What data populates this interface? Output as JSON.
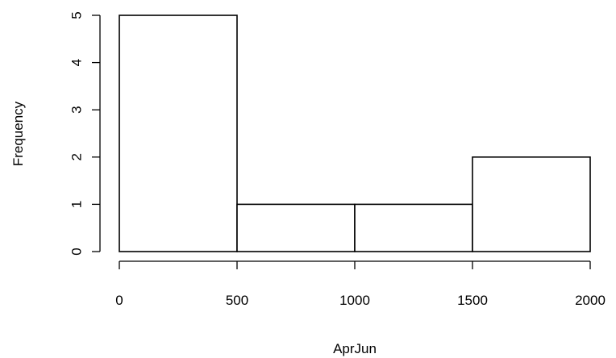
{
  "chart_data": {
    "type": "bar",
    "title": "",
    "xlabel": "AprJun",
    "ylabel": "Frequency",
    "bins": [
      {
        "start": 0,
        "end": 500,
        "count": 5
      },
      {
        "start": 500,
        "end": 1000,
        "count": 1
      },
      {
        "start": 1000,
        "end": 1500,
        "count": 1
      },
      {
        "start": 1500,
        "end": 2000,
        "count": 2
      }
    ],
    "xlim": [
      0,
      2000
    ],
    "ylim": [
      0,
      5
    ],
    "x_ticks": [
      0,
      500,
      1000,
      1500,
      2000
    ],
    "y_ticks": [
      0,
      1,
      2,
      3,
      4,
      5
    ],
    "grid": false,
    "legend": "none"
  }
}
